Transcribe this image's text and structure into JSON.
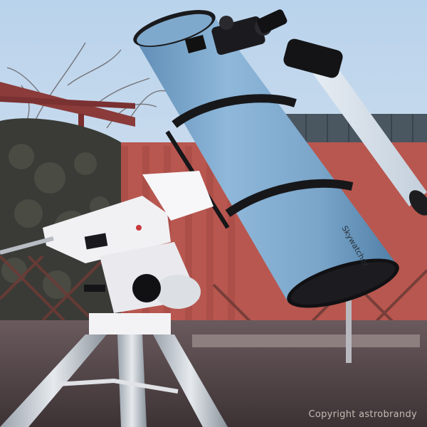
{
  "image": {
    "watermark": "Copyright astrobrandy",
    "tube_brand_text": "Skywatcher"
  },
  "colors": {
    "sky": "#c8d8ea",
    "tube": "#7fa9cc",
    "tube_shadow": "#4f7ea6",
    "wall": "#b8574f",
    "roof": "#4a5660",
    "ground": "#5a4a4e",
    "mount": "#f1f1f4",
    "bush": "#3a3b36"
  }
}
